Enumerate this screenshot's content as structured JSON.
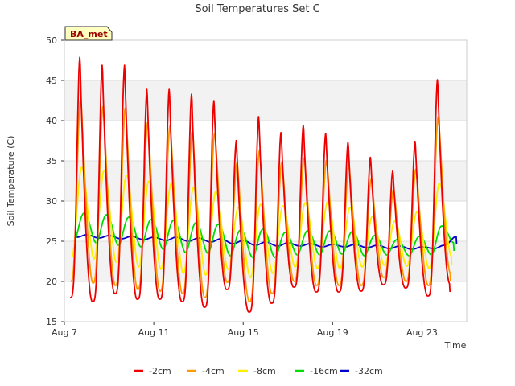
{
  "chart_data": {
    "type": "line",
    "title": "Soil Temperatures Set C",
    "xlabel": "Time",
    "ylabel": "Soil Temperature (C)",
    "site_badge": "BA_met",
    "xlim": [
      7,
      25
    ],
    "ylim": [
      15,
      50
    ],
    "x_unit": "day of August",
    "x_ticks": [
      {
        "value": 7,
        "label": "Aug 7"
      },
      {
        "value": 11,
        "label": "Aug 11"
      },
      {
        "value": 15,
        "label": "Aug 15"
      },
      {
        "value": 19,
        "label": "Aug 19"
      },
      {
        "value": 23,
        "label": "Aug 23"
      }
    ],
    "y_ticks": [
      15,
      20,
      25,
      30,
      35,
      40,
      45,
      50
    ],
    "grid": true,
    "legend_position": "bottom",
    "colors": {
      "-2cm": "#ee0000",
      "-4cm": "#ff9900",
      "-8cm": "#ffee00",
      "-16cm": "#00dd00",
      "-32cm": "#0000cc"
    },
    "sampling": "daily minimum (early morning) and daily maximum (afternoon) approximated from the plotted curves",
    "series": [
      {
        "name": "-2cm",
        "daily_min": [
          18.0,
          17.5,
          18.5,
          17.8,
          17.8,
          17.5,
          16.8,
          19.0,
          16.2,
          17.3,
          19.3,
          18.7,
          18.7,
          18.8,
          19.6,
          19.2,
          18.2
        ],
        "daily_max": [
          48.0,
          47.0,
          47.0,
          44.0,
          44.0,
          43.4,
          42.6,
          37.6,
          40.6,
          38.6,
          39.5,
          38.5,
          37.4,
          35.5,
          33.8,
          37.5,
          45.2
        ]
      },
      {
        "name": "-4cm",
        "daily_min": [
          20.0,
          19.8,
          19.5,
          19.0,
          18.8,
          18.5,
          18.0,
          19.9,
          17.5,
          18.5,
          20.0,
          19.5,
          19.5,
          19.5,
          20.5,
          20.0,
          19.5
        ],
        "daily_max": [
          42.8,
          41.8,
          41.6,
          39.8,
          39.4,
          38.8,
          38.5,
          34.8,
          36.3,
          34.9,
          35.4,
          35.1,
          34.5,
          32.8,
          31.5,
          34.0,
          40.5
        ]
      },
      {
        "name": "-8cm",
        "daily_min": [
          23.0,
          22.8,
          22.4,
          21.8,
          21.5,
          21.0,
          20.8,
          21.5,
          20.5,
          21.0,
          21.8,
          21.6,
          21.6,
          21.8,
          22.0,
          21.9,
          21.6
        ],
        "daily_max": [
          34.2,
          33.8,
          33.2,
          32.5,
          32.2,
          31.7,
          31.2,
          29.2,
          29.6,
          29.4,
          29.8,
          29.9,
          29.2,
          28.1,
          27.5,
          28.7,
          32.2
        ]
      },
      {
        "name": "-16cm",
        "daily_min": [
          25.0,
          24.8,
          24.5,
          24.3,
          24.0,
          23.6,
          23.5,
          23.2,
          23.0,
          23.0,
          23.3,
          23.3,
          23.4,
          23.2,
          23.3,
          23.2,
          23.3
        ],
        "daily_max": [
          28.5,
          28.3,
          28.0,
          27.7,
          27.6,
          27.3,
          27.1,
          26.4,
          26.5,
          26.1,
          26.3,
          26.3,
          26.2,
          25.7,
          25.2,
          25.6,
          26.9
        ]
      },
      {
        "name": "-32cm",
        "daily_min": [
          25.5,
          25.4,
          25.3,
          25.2,
          25.1,
          25.0,
          24.9,
          24.7,
          24.5,
          24.4,
          24.4,
          24.3,
          24.3,
          24.2,
          24.1,
          24.0,
          24.1
        ],
        "daily_max": [
          25.8,
          25.7,
          25.6,
          25.5,
          25.5,
          25.4,
          25.3,
          25.1,
          24.9,
          24.8,
          24.7,
          24.6,
          24.6,
          24.5,
          24.4,
          24.3,
          24.5
        ]
      }
    ]
  }
}
